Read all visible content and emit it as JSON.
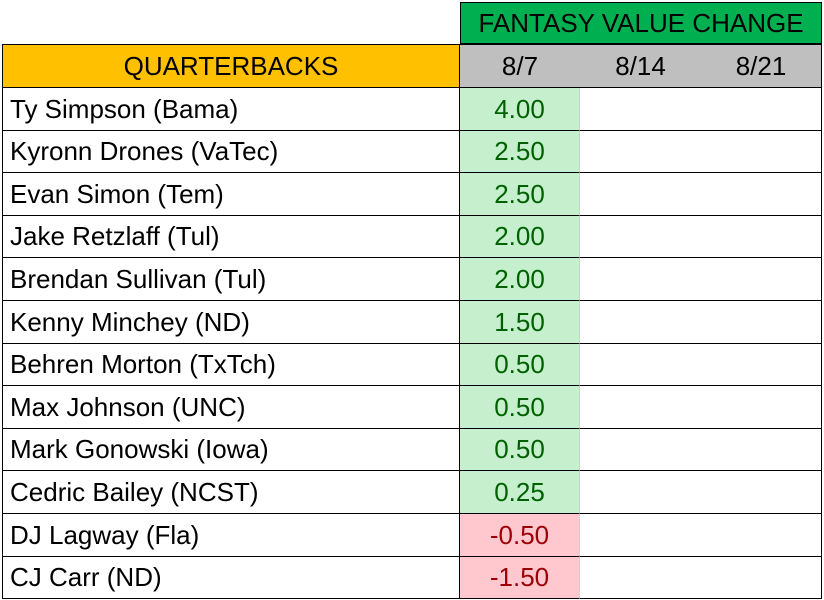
{
  "title": "FANTASY VALUE CHANGE",
  "position_header": "QUARTERBACKS",
  "dates": [
    "8/7",
    "8/14",
    "8/21"
  ],
  "colors": {
    "title_bg": "#00b050",
    "position_header_bg": "#ffc000",
    "date_header_bg": "#bfbfbf",
    "positive_fill": "#c6efce",
    "positive_text": "#006100",
    "negative_fill": "#ffc7ce",
    "negative_text": "#9c0006"
  },
  "players": [
    {
      "name": "Ty Simpson (Bama)",
      "values": [
        "4.00",
        "",
        ""
      ]
    },
    {
      "name": "Kyronn Drones (VaTec)",
      "values": [
        "2.50",
        "",
        ""
      ]
    },
    {
      "name": "Evan Simon (Tem)",
      "values": [
        "2.50",
        "",
        ""
      ]
    },
    {
      "name": "Jake Retzlaff (Tul)",
      "values": [
        "2.00",
        "",
        ""
      ]
    },
    {
      "name": "Brendan Sullivan (Tul)",
      "values": [
        "2.00",
        "",
        ""
      ]
    },
    {
      "name": "Kenny Minchey (ND)",
      "values": [
        "1.50",
        "",
        ""
      ]
    },
    {
      "name": "Behren Morton (TxTch)",
      "values": [
        "0.50",
        "",
        ""
      ]
    },
    {
      "name": "Max Johnson (UNC)",
      "values": [
        "0.50",
        "",
        ""
      ]
    },
    {
      "name": "Mark Gonowski (Iowa)",
      "values": [
        "0.50",
        "",
        ""
      ]
    },
    {
      "name": "Cedric Bailey (NCST)",
      "values": [
        "0.25",
        "",
        ""
      ]
    },
    {
      "name": "DJ Lagway (Fla)",
      "values": [
        "-0.50",
        "",
        ""
      ]
    },
    {
      "name": "CJ Carr (ND)",
      "values": [
        "-1.50",
        "",
        ""
      ]
    }
  ]
}
